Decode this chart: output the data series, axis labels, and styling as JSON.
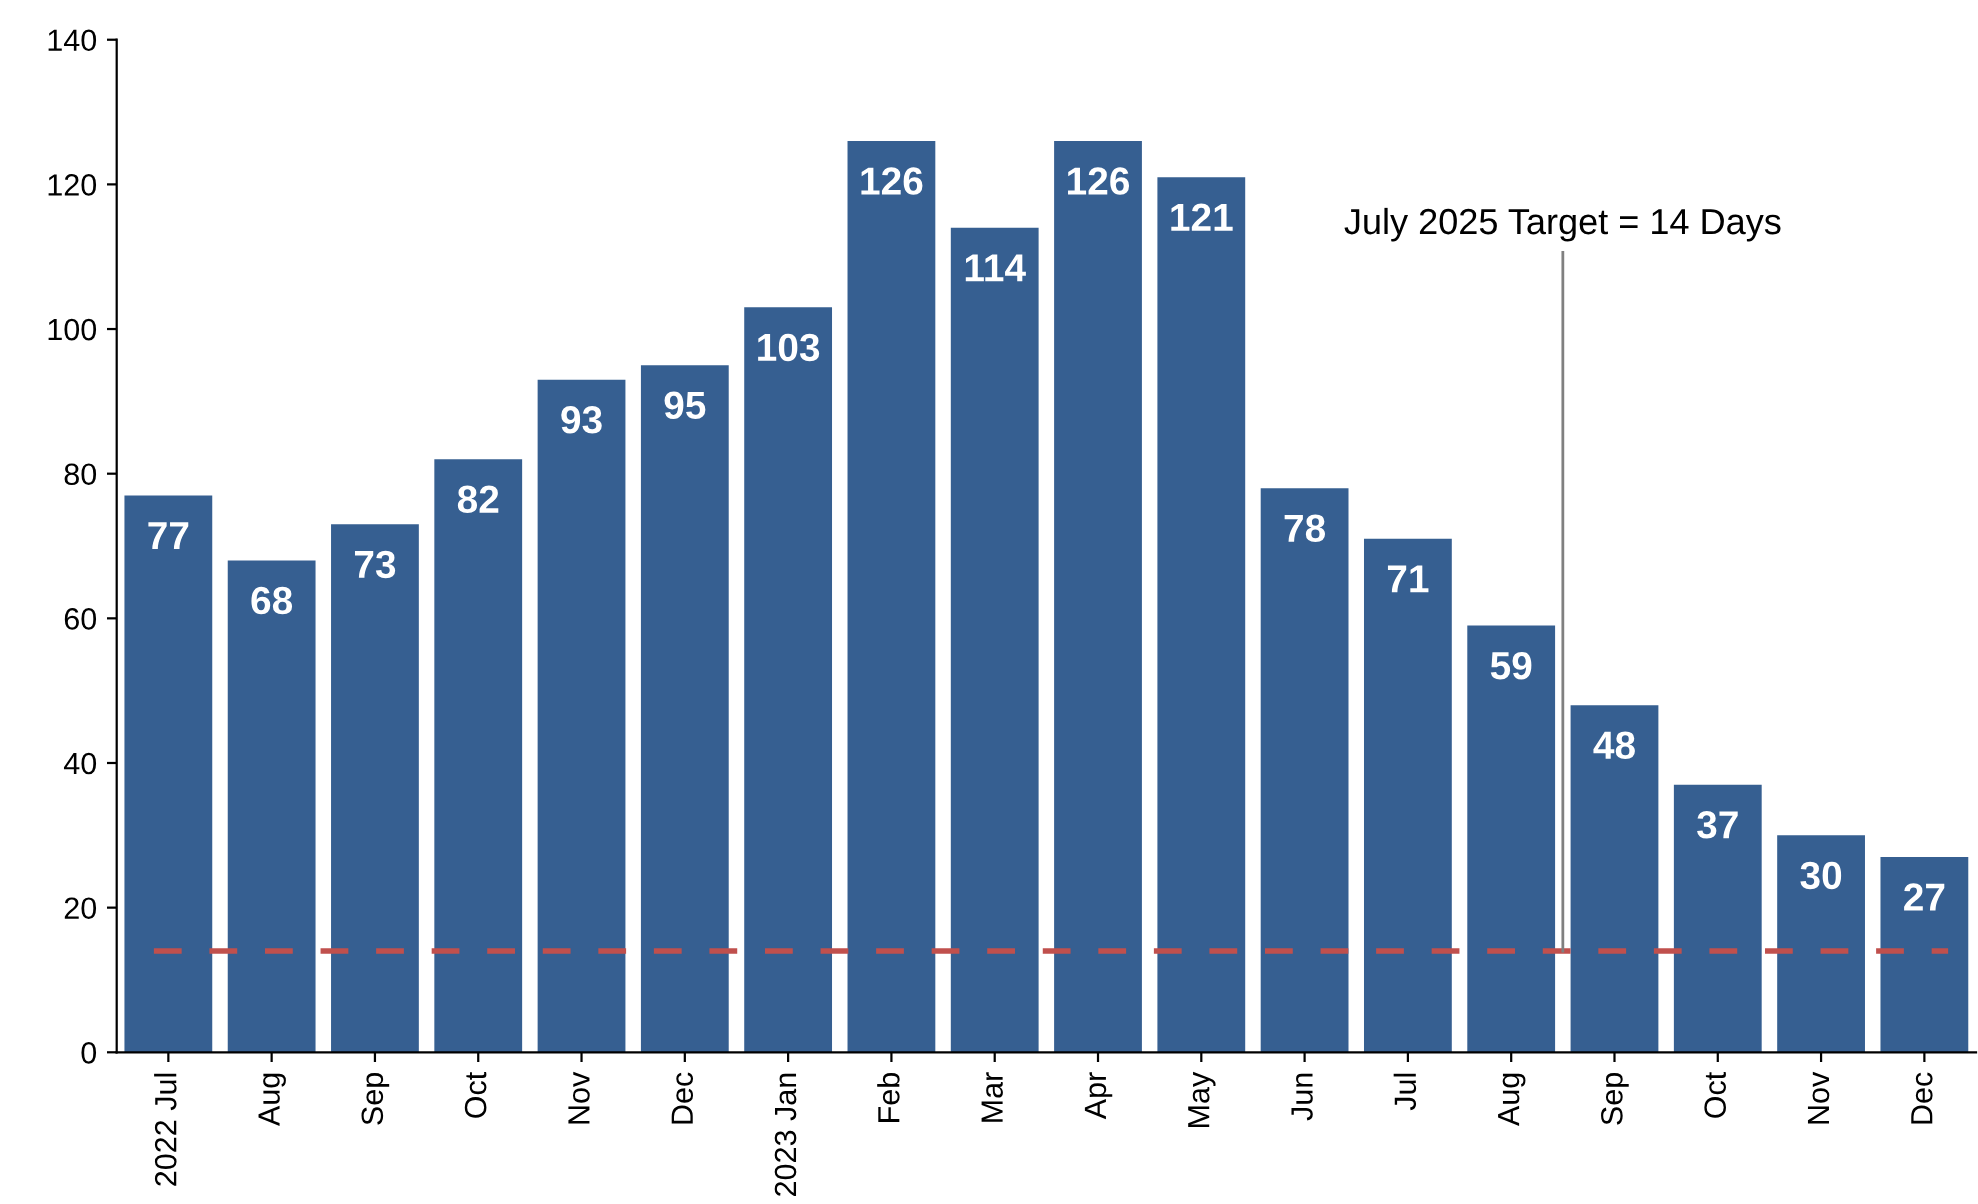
{
  "chart_data": {
    "type": "bar",
    "categories": [
      "2022 Jul",
      "Aug",
      "Sep",
      "Oct",
      "Nov",
      "Dec",
      "2023 Jan",
      "Feb",
      "Mar",
      "Apr",
      "May",
      "Jun",
      "Jul",
      "Aug",
      "Sep",
      "Oct",
      "Nov",
      "Dec"
    ],
    "values": [
      77,
      68,
      73,
      82,
      93,
      95,
      103,
      126,
      114,
      126,
      121,
      78,
      71,
      59,
      48,
      37,
      30,
      27
    ],
    "color": "#365f91",
    "ylim": [
      0,
      140
    ],
    "yticks": [
      0,
      20,
      40,
      60,
      80,
      100,
      120,
      140
    ],
    "grid": false,
    "data_labels": true,
    "ref_lines": [
      {
        "axis": "y",
        "value": 14,
        "label": "July 2025 Target = 14 Days",
        "color": "#c0504d",
        "line_style": "dashed"
      }
    ]
  }
}
